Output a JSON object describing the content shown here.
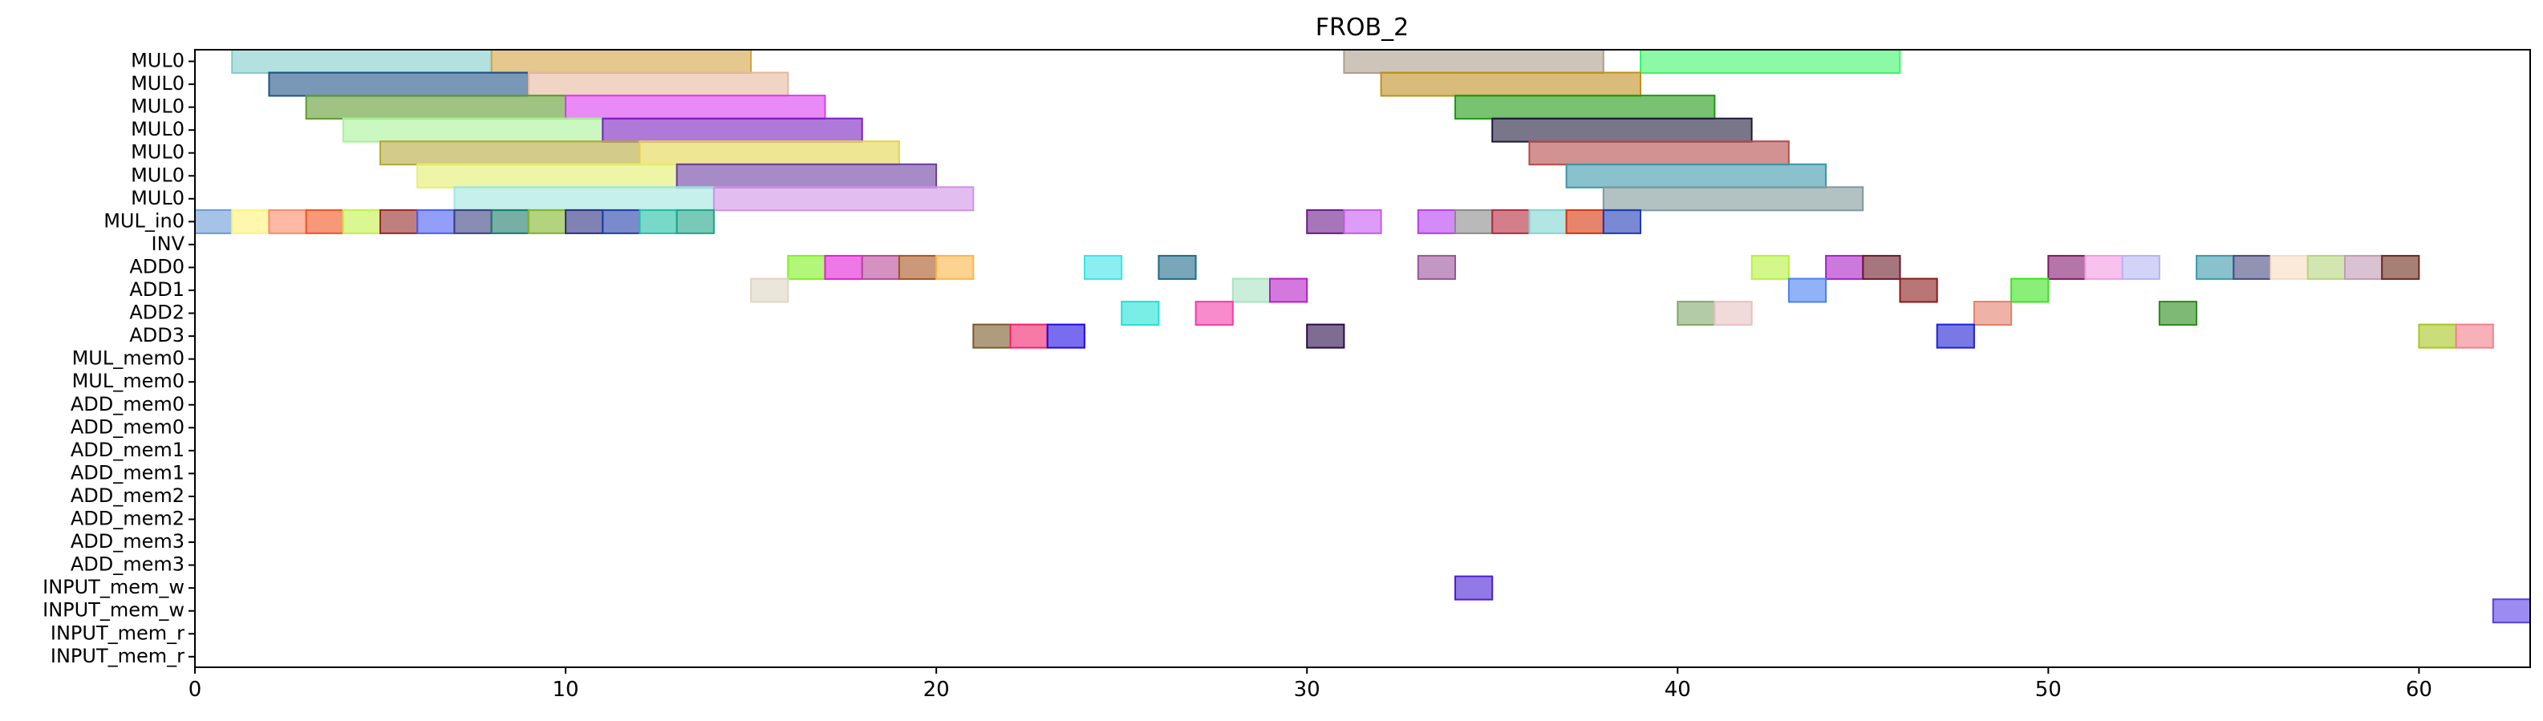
{
  "chart_data": {
    "type": "gantt",
    "title": "FROB_2",
    "xlabel": "",
    "ylabel": "",
    "xlim": [
      0,
      63
    ],
    "x_ticks": [
      0,
      10,
      20,
      30,
      40,
      50,
      60
    ],
    "grid": false,
    "rows": [
      "MUL0",
      "MUL0",
      "MUL0",
      "MUL0",
      "MUL0",
      "MUL0",
      "MUL0",
      "MUL_in0",
      "INV",
      "ADD0",
      "ADD1",
      "ADD2",
      "ADD3",
      "MUL_mem0",
      "MUL_mem0",
      "ADD_mem0",
      "ADD_mem0",
      "ADD_mem1",
      "ADD_mem1",
      "ADD_mem2",
      "ADD_mem2",
      "ADD_mem3",
      "ADD_mem3",
      "INPUT_mem_w",
      "INPUT_mem_w",
      "INPUT_mem_r",
      "INPUT_mem_r"
    ],
    "tasks": [
      {
        "row": 0,
        "start": 1,
        "end": 8,
        "color": "#7fcdc9"
      },
      {
        "row": 0,
        "start": 8,
        "end": 15,
        "color": "#d2a341"
      },
      {
        "row": 0,
        "start": 31,
        "end": 38,
        "color": "#ab9f8c"
      },
      {
        "row": 0,
        "start": 39,
        "end": 46,
        "color": "#3ef56a"
      },
      {
        "row": 1,
        "start": 2,
        "end": 9,
        "color": "#1f5286"
      },
      {
        "row": 1,
        "start": 9,
        "end": 16,
        "color": "#e6b89c"
      },
      {
        "row": 1,
        "start": 32,
        "end": 39,
        "color": "#bf8f1f"
      },
      {
        "row": 2,
        "start": 3,
        "end": 10,
        "color": "#5f9b2e"
      },
      {
        "row": 2,
        "start": 10,
        "end": 17,
        "color": "#da3ef2"
      },
      {
        "row": 2,
        "start": 34,
        "end": 41,
        "color": "#1e9a12"
      },
      {
        "row": 3,
        "start": 4,
        "end": 11,
        "color": "#a8f296"
      },
      {
        "row": 3,
        "start": 11,
        "end": 18,
        "color": "#7a1fbf"
      },
      {
        "row": 3,
        "start": 35,
        "end": 42,
        "color": "#1f1a3a"
      },
      {
        "row": 4,
        "start": 5,
        "end": 12,
        "color": "#b5a83a"
      },
      {
        "row": 4,
        "start": 12,
        "end": 19,
        "color": "#e3d54a"
      },
      {
        "row": 4,
        "start": 36,
        "end": 43,
        "color": "#b44a4a"
      },
      {
        "row": 5,
        "start": 6,
        "end": 13,
        "color": "#e4ef6c"
      },
      {
        "row": 5,
        "start": 13,
        "end": 20,
        "color": "#6a3ea0"
      },
      {
        "row": 5,
        "start": 37,
        "end": 44,
        "color": "#3a97aa"
      },
      {
        "row": 6,
        "start": 7,
        "end": 14,
        "color": "#9fe6e0"
      },
      {
        "row": 6,
        "start": 14,
        "end": 21,
        "color": "#cf92e6"
      },
      {
        "row": 6,
        "start": 38,
        "end": 45,
        "color": "#7f9a9b"
      },
      {
        "row": 7,
        "start": 0,
        "end": 1,
        "color": "#6a9ad6"
      },
      {
        "row": 7,
        "start": 1,
        "end": 2,
        "color": "#fef47a"
      },
      {
        "row": 7,
        "start": 2,
        "end": 3,
        "color": "#fb8b6a"
      },
      {
        "row": 7,
        "start": 3,
        "end": 4,
        "color": "#f2541f"
      },
      {
        "row": 7,
        "start": 4,
        "end": 5,
        "color": "#c2f24a"
      },
      {
        "row": 7,
        "start": 5,
        "end": 6,
        "color": "#962a2a"
      },
      {
        "row": 7,
        "start": 6,
        "end": 7,
        "color": "#4a5ef2"
      },
      {
        "row": 7,
        "start": 7,
        "end": 8,
        "color": "#3a3f80"
      },
      {
        "row": 7,
        "start": 8,
        "end": 9,
        "color": "#1a7a6a"
      },
      {
        "row": 7,
        "start": 9,
        "end": 10,
        "color": "#80b52a"
      },
      {
        "row": 7,
        "start": 10,
        "end": 11,
        "color": "#2a2f80"
      },
      {
        "row": 7,
        "start": 11,
        "end": 12,
        "color": "#1f3ea8"
      },
      {
        "row": 7,
        "start": 12,
        "end": 13,
        "color": "#1fbfa5"
      },
      {
        "row": 7,
        "start": 13,
        "end": 14,
        "color": "#1fa58a"
      },
      {
        "row": 7,
        "start": 30,
        "end": 31,
        "color": "#6a1a8a"
      },
      {
        "row": 7,
        "start": 31,
        "end": 32,
        "color": "#c65af2"
      },
      {
        "row": 7,
        "start": 33,
        "end": 34,
        "color": "#b53ef2"
      },
      {
        "row": 7,
        "start": 34,
        "end": 35,
        "color": "#8a8a8a"
      },
      {
        "row": 7,
        "start": 35,
        "end": 36,
        "color": "#b52a3e"
      },
      {
        "row": 7,
        "start": 36,
        "end": 37,
        "color": "#7fd6d2"
      },
      {
        "row": 7,
        "start": 37,
        "end": 38,
        "color": "#d6340a"
      },
      {
        "row": 7,
        "start": 38,
        "end": 39,
        "color": "#1f3ab5"
      },
      {
        "row": 9,
        "start": 16,
        "end": 17,
        "color": "#7ff21f"
      },
      {
        "row": 9,
        "start": 17,
        "end": 18,
        "color": "#e21fd6"
      },
      {
        "row": 9,
        "start": 18,
        "end": 19,
        "color": "#b5499a"
      },
      {
        "row": 9,
        "start": 19,
        "end": 20,
        "color": "#a8541f"
      },
      {
        "row": 9,
        "start": 20,
        "end": 21,
        "color": "#fbb64a"
      },
      {
        "row": 9,
        "start": 24,
        "end": 25,
        "color": "#3ee2e6"
      },
      {
        "row": 9,
        "start": 26,
        "end": 27,
        "color": "#1f6a8a"
      },
      {
        "row": 9,
        "start": 33,
        "end": 34,
        "color": "#9a549a"
      },
      {
        "row": 9,
        "start": 42,
        "end": 43,
        "color": "#b5f23e"
      },
      {
        "row": 9,
        "start": 44,
        "end": 45,
        "color": "#a81fc6"
      },
      {
        "row": 9,
        "start": 45,
        "end": 46,
        "color": "#6a1a2a"
      },
      {
        "row": 9,
        "start": 50,
        "end": 51,
        "color": "#801a6a"
      },
      {
        "row": 9,
        "start": 51,
        "end": 52,
        "color": "#f29ae2"
      },
      {
        "row": 9,
        "start": 52,
        "end": 53,
        "color": "#b5b5f2"
      },
      {
        "row": 9,
        "start": 54,
        "end": 55,
        "color": "#3a9aaa"
      },
      {
        "row": 9,
        "start": 55,
        "end": 56,
        "color": "#4a4a80"
      },
      {
        "row": 9,
        "start": 56,
        "end": 57,
        "color": "#f6dcc2"
      },
      {
        "row": 9,
        "start": 57,
        "end": 58,
        "color": "#b5d67f"
      },
      {
        "row": 9,
        "start": 58,
        "end": 59,
        "color": "#c29ab5"
      },
      {
        "row": 9,
        "start": 59,
        "end": 60,
        "color": "#6a2a1a"
      },
      {
        "row": 10,
        "start": 15,
        "end": 16,
        "color": "#ddd6c2"
      },
      {
        "row": 10,
        "start": 28,
        "end": 29,
        "color": "#a8e2c2"
      },
      {
        "row": 10,
        "start": 29,
        "end": 30,
        "color": "#b51fc6"
      },
      {
        "row": 10,
        "start": 43,
        "end": 44,
        "color": "#4a7ff2"
      },
      {
        "row": 10,
        "start": 46,
        "end": 47,
        "color": "#8a1a1a"
      },
      {
        "row": 10,
        "start": 49,
        "end": 50,
        "color": "#3ee21f"
      },
      {
        "row": 11,
        "start": 25,
        "end": 26,
        "color": "#1fe2d6"
      },
      {
        "row": 11,
        "start": 27,
        "end": 28,
        "color": "#f23ea8"
      },
      {
        "row": 11,
        "start": 40,
        "end": 41,
        "color": "#80a86a"
      },
      {
        "row": 11,
        "start": 41,
        "end": 42,
        "color": "#e6c2c2"
      },
      {
        "row": 11,
        "start": 48,
        "end": 49,
        "color": "#e2806a"
      },
      {
        "row": 11,
        "start": 53,
        "end": 54,
        "color": "#2a8a1a"
      },
      {
        "row": 12,
        "start": 21,
        "end": 22,
        "color": "#7a5a2a"
      },
      {
        "row": 12,
        "start": 22,
        "end": 23,
        "color": "#f21f6a"
      },
      {
        "row": 12,
        "start": 23,
        "end": 24,
        "color": "#1f0ae2"
      },
      {
        "row": 12,
        "start": 30,
        "end": 31,
        "color": "#2a0a4a"
      },
      {
        "row": 12,
        "start": 47,
        "end": 48,
        "color": "#1f1fd6"
      },
      {
        "row": 12,
        "start": 60,
        "end": 61,
        "color": "#a8c61f"
      },
      {
        "row": 12,
        "start": 61,
        "end": 62,
        "color": "#f27f8a"
      },
      {
        "row": 23,
        "start": 34,
        "end": 35,
        "color": "#4a1fd6"
      },
      {
        "row": 24,
        "start": 62,
        "end": 63,
        "color": "#5a3ee6"
      }
    ]
  }
}
